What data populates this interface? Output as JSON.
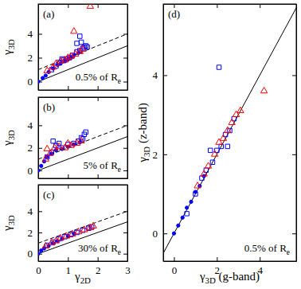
{
  "chart_data": [
    {
      "type": "scatter",
      "title": "(a)",
      "annotations": [
        {
          "text": "0.5% of R",
          "sub": "e"
        }
      ],
      "ylabel": {
        "text": "γ",
        "sub": "3D"
      },
      "xlim": [
        0,
        3
      ],
      "ylim": [
        -0.7,
        6.5
      ],
      "xticks": [
        0,
        1,
        2,
        3
      ],
      "yticks": [
        0,
        2,
        4
      ],
      "tick_labels": "y",
      "series": [
        {
          "type": "line",
          "line_style": "solid",
          "color": "#000000",
          "x": [
            0,
            3
          ],
          "values": [
            0,
            3
          ]
        },
        {
          "type": "line",
          "line_style": "dashed",
          "color": "#000000",
          "x": [
            0,
            3
          ],
          "values": [
            1,
            4
          ]
        },
        {
          "type": "scatter",
          "marker": "square",
          "color": "#0000ff",
          "x": [
            0.45,
            0.6,
            0.7,
            0.85,
            0.95,
            1.05,
            1.15,
            1.3,
            1.4,
            1.5,
            1.55,
            1.6,
            1.3,
            1.45,
            1.65,
            0.8,
            1.4
          ],
          "values": [
            1.0,
            1.3,
            1.6,
            1.8,
            1.9,
            2.0,
            2.2,
            2.5,
            2.6,
            2.8,
            2.9,
            3.0,
            3.2,
            3.3,
            2.9,
            1.9,
            3.8
          ]
        },
        {
          "type": "scatter",
          "marker": "circle",
          "color": "#0000ff",
          "x": [
            0,
            0.15,
            0.25,
            0.35,
            0.5,
            0.65,
            0.75,
            0.9,
            1.0,
            1.1,
            1.2,
            1.35
          ],
          "values": [
            0,
            0.3,
            0.5,
            0.8,
            1.1,
            1.4,
            1.5,
            1.7,
            1.85,
            2.0,
            2.2,
            2.4
          ]
        },
        {
          "type": "scatter",
          "marker": "triangle",
          "color": "#ff0000",
          "x": [
            0.3,
            0.5,
            0.6,
            0.75,
            0.9,
            1.0,
            1.1,
            1.25,
            1.4,
            1.5,
            1.2,
            1.75
          ],
          "values": [
            0.9,
            1.2,
            1.5,
            1.7,
            1.8,
            2.0,
            2.1,
            2.3,
            2.5,
            2.7,
            4.2,
            6.3
          ]
        }
      ]
    },
    {
      "type": "scatter",
      "title": "(b)",
      "annotations": [
        {
          "text": "5% of R",
          "sub": "e"
        }
      ],
      "ylabel": {
        "text": "γ",
        "sub": "3D"
      },
      "xlim": [
        0,
        3
      ],
      "ylim": [
        -0.7,
        6.5
      ],
      "xticks": [
        0,
        1,
        2,
        3
      ],
      "yticks": [
        0,
        2,
        4
      ],
      "tick_labels": "y",
      "series": [
        {
          "type": "line",
          "line_style": "solid",
          "color": "#000000",
          "x": [
            0,
            3
          ],
          "values": [
            0,
            3
          ]
        },
        {
          "type": "line",
          "line_style": "dashed",
          "color": "#000000",
          "x": [
            0,
            3
          ],
          "values": [
            1,
            4
          ]
        },
        {
          "type": "scatter",
          "marker": "square",
          "color": "#0000ff",
          "x": [
            0.3,
            0.45,
            0.6,
            0.7,
            0.8,
            1.0,
            1.2,
            1.35,
            1.5,
            1.55,
            1.6,
            0.5,
            1.45
          ],
          "values": [
            1.2,
            1.6,
            2.2,
            2.4,
            2.0,
            2.3,
            2.4,
            2.6,
            2.8,
            3.2,
            3.4,
            2.6,
            2.9
          ]
        },
        {
          "type": "scatter",
          "marker": "circle",
          "color": "#0000ff",
          "x": [
            0,
            0.1,
            0.2,
            0.3,
            0.45,
            0.6,
            0.8,
            1.0,
            1.2,
            1.4
          ],
          "values": [
            0,
            0.4,
            0.8,
            1.2,
            1.5,
            1.8,
            1.9,
            2.1,
            2.3,
            2.5
          ]
        },
        {
          "type": "scatter",
          "marker": "triangle",
          "color": "#ff0000",
          "x": [
            0.25,
            0.4,
            0.55,
            0.7,
            0.9,
            1.1,
            1.3,
            1.45,
            0.3,
            1.0
          ],
          "values": [
            1.0,
            1.5,
            2.0,
            2.1,
            2.0,
            2.2,
            2.4,
            2.6,
            1.9,
            2.4
          ]
        }
      ]
    },
    {
      "type": "scatter",
      "title": "(c)",
      "annotations": [
        {
          "text": "30% of R",
          "sub": "e"
        }
      ],
      "xlabel": {
        "text": "γ",
        "sub": "2D"
      },
      "ylabel": {
        "text": "γ",
        "sub": "3D"
      },
      "xlim": [
        0,
        3
      ],
      "ylim": [
        -0.7,
        6.5
      ],
      "xticks": [
        0,
        1,
        2,
        3
      ],
      "yticks": [
        0,
        2,
        4
      ],
      "series": [
        {
          "type": "line",
          "line_style": "solid",
          "color": "#000000",
          "x": [
            0,
            3
          ],
          "values": [
            0,
            3
          ]
        },
        {
          "type": "line",
          "line_style": "dashed",
          "color": "#000000",
          "x": [
            0,
            3
          ],
          "values": [
            1,
            4
          ]
        },
        {
          "type": "scatter",
          "marker": "square",
          "color": "#0000ff",
          "x": [
            0.3,
            0.5,
            0.7,
            0.9,
            1.1,
            1.3,
            1.5,
            1.7,
            1.8
          ],
          "values": [
            0.8,
            1.1,
            1.4,
            1.6,
            1.8,
            2.0,
            2.2,
            2.4,
            2.5
          ]
        },
        {
          "type": "scatter",
          "marker": "circle",
          "color": "#0000ff",
          "x": [
            0,
            0.1,
            0.2,
            0.35,
            0.5,
            0.65,
            0.8,
            1.0,
            1.2
          ],
          "values": [
            0,
            0.3,
            0.5,
            0.75,
            1.0,
            1.2,
            1.4,
            1.65,
            1.9
          ]
        },
        {
          "type": "scatter",
          "marker": "triangle",
          "color": "#ff0000",
          "x": [
            0.25,
            0.45,
            0.6,
            0.75,
            0.95,
            1.15,
            1.35,
            1.55,
            1.75,
            1.85
          ],
          "values": [
            0.7,
            1.0,
            1.2,
            1.45,
            1.65,
            1.85,
            2.05,
            2.25,
            2.45,
            2.6
          ]
        }
      ]
    },
    {
      "type": "scatter",
      "title": "(d)",
      "annotations": [
        {
          "text": "0.5% of R",
          "sub": "e"
        }
      ],
      "xlabel": {
        "text": "γ",
        "sub": "3D",
        "after": " (g-band)"
      },
      "ylabel": {
        "text": "γ",
        "sub": "3D",
        "after": " (z-band)"
      },
      "xlim": [
        -0.5,
        5.7
      ],
      "ylim": [
        -0.7,
        5.8
      ],
      "xticks": [
        0,
        2,
        4
      ],
      "yticks": [
        0,
        2,
        4
      ],
      "series": [
        {
          "type": "line",
          "line_style": "solid",
          "color": "#000000",
          "x": [
            -0.7,
            5.8
          ],
          "values": [
            -0.7,
            5.8
          ]
        },
        {
          "type": "scatter",
          "marker": "square",
          "color": "#0000ff",
          "x": [
            0.6,
            1.0,
            1.3,
            1.5,
            1.8,
            2.0,
            2.2,
            2.4,
            2.6,
            2.8,
            2.1,
            1.7,
            2.5
          ],
          "values": [
            0.5,
            1.0,
            1.4,
            1.6,
            1.8,
            2.1,
            2.2,
            2.5,
            2.6,
            2.9,
            4.2,
            2.1,
            2.2
          ]
        },
        {
          "type": "scatter",
          "marker": "circle",
          "color": "#0000ff",
          "x": [
            0,
            0.2,
            0.4,
            0.6,
            0.8,
            1.0,
            1.2,
            1.4
          ],
          "values": [
            0,
            0.2,
            0.4,
            0.65,
            0.8,
            1.05,
            1.2,
            1.45
          ]
        },
        {
          "type": "scatter",
          "marker": "triangle",
          "color": "#ff0000",
          "x": [
            1.1,
            1.4,
            1.6,
            1.9,
            2.1,
            2.3,
            2.5,
            2.7,
            2.9,
            3.1,
            4.2
          ],
          "values": [
            1.2,
            1.5,
            1.7,
            2.0,
            2.3,
            2.4,
            2.6,
            2.8,
            3.0,
            3.1,
            3.6
          ]
        }
      ]
    }
  ]
}
